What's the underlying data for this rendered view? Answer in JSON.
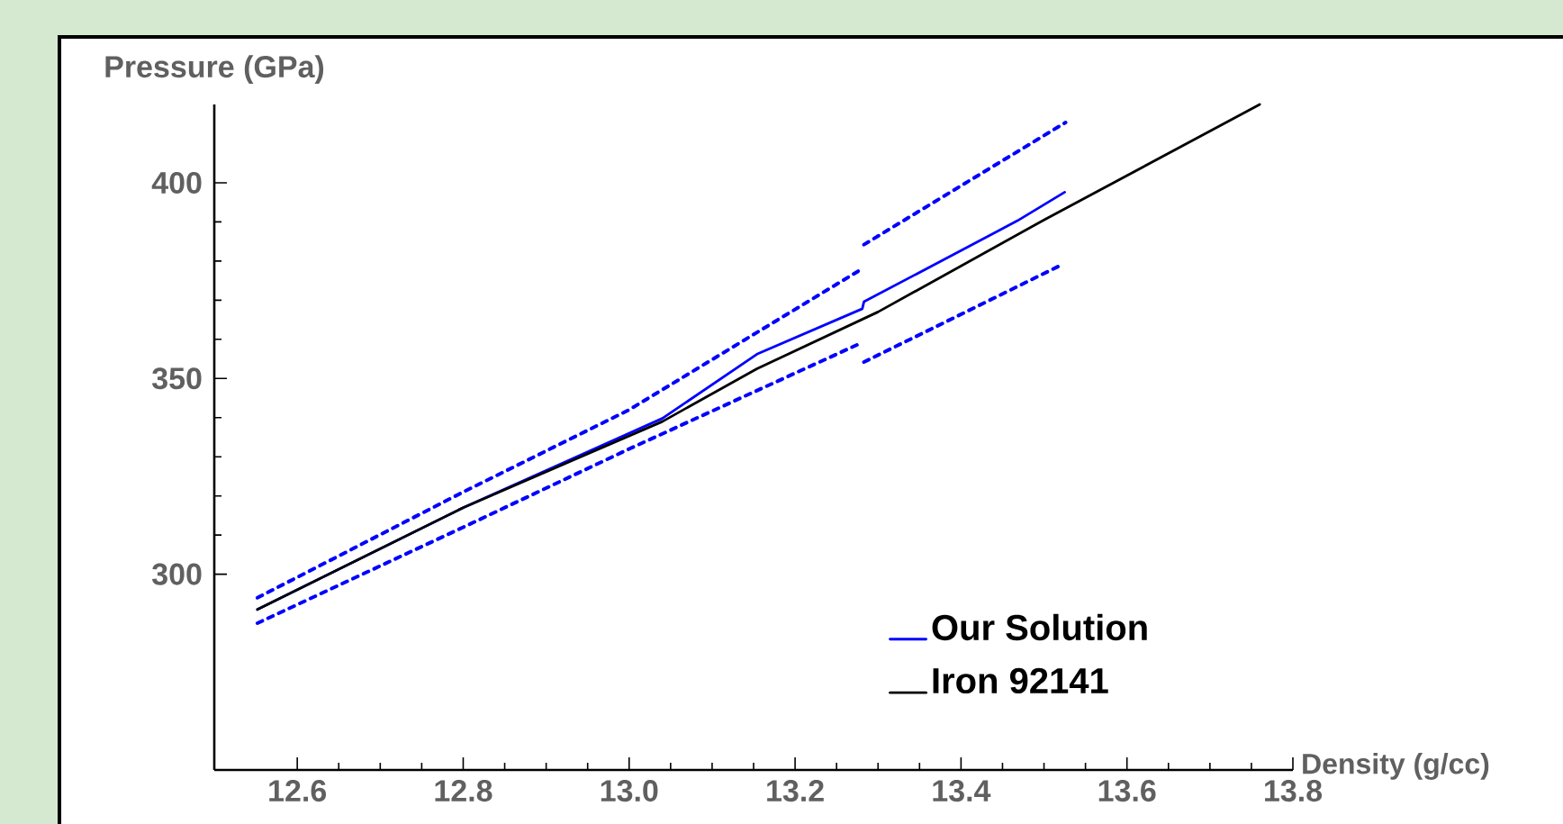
{
  "chart_data": {
    "type": "line",
    "xlabel": "Density (g/cc)",
    "ylabel": "Pressure (GPa)",
    "xlim": [
      12.5,
      13.8
    ],
    "ylim": [
      250,
      420
    ],
    "xticks": [
      {
        "value": 12.6,
        "label": "12.6"
      },
      {
        "value": 12.8,
        "label": "12.8"
      },
      {
        "value": 13.0,
        "label": "13.0"
      },
      {
        "value": 13.2,
        "label": "13.2"
      },
      {
        "value": 13.4,
        "label": "13.4"
      },
      {
        "value": 13.6,
        "label": "13.6"
      },
      {
        "value": 13.8,
        "label": "13.8"
      }
    ],
    "yticks": [
      300,
      350,
      400
    ],
    "legend": "bottom right",
    "series": [
      {
        "name": "Our Solution",
        "color": "#0000ff",
        "line_style": "solid",
        "x": [
          12.552,
          12.8,
          13.04,
          13.154,
          13.281,
          13.283,
          13.468,
          13.525
        ],
        "values": [
          291,
          317,
          339.8,
          356.2,
          367.8,
          369.6,
          390.3,
          397.6
        ]
      },
      {
        "name": "Iron 92141",
        "color": "#000000",
        "line_style": "solid",
        "x": [
          12.552,
          12.8,
          13.04,
          13.154,
          13.3,
          13.5,
          13.76
        ],
        "values": [
          291,
          317,
          339,
          352.5,
          367,
          390.5,
          420
        ]
      },
      {
        "color": "#0000ff",
        "line_style": "dotted",
        "x": [
          12.552,
          12.8,
          13.0,
          13.276,
          13.28,
          13.283,
          13.526
        ],
        "values": [
          294,
          321,
          342,
          377.4,
          null,
          384.2,
          415.4
        ]
      },
      {
        "color": "#0000ff",
        "line_style": "dotted",
        "x": [
          12.552,
          12.8,
          13.0,
          13.281,
          13.282,
          13.283,
          13.517
        ],
        "values": [
          287.5,
          312,
          332,
          359.2,
          null,
          354.2,
          378.6
        ]
      }
    ]
  }
}
